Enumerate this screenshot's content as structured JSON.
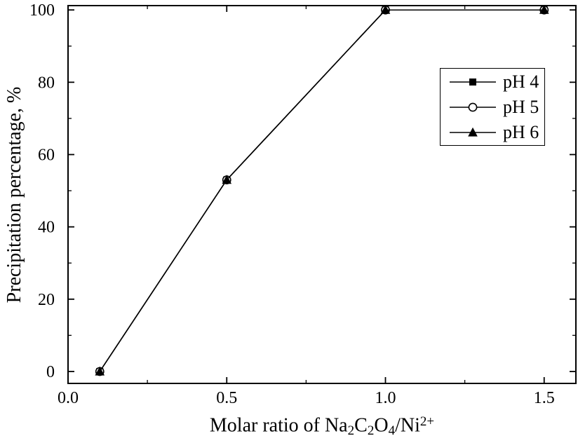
{
  "colors": {
    "foreground": "#000000",
    "background": "#ffffff"
  },
  "labels": {
    "ylabel": "Precipitation percentage, %",
    "xlabel": {
      "t1": "Molar ratio of Na",
      "s1": "2",
      "t2": "C",
      "s2": "2",
      "t3": "O",
      "s3": "4",
      "t4": "/Ni",
      "sup1": "2+"
    }
  },
  "chart_data": {
    "type": "line",
    "title": "",
    "xlabel": "Molar ratio of Na2C2O4/Ni2+",
    "ylabel": "Precipitation percentage, %",
    "x": [
      0.1,
      0.5,
      1.0,
      1.5
    ],
    "series": [
      {
        "name": "pH 4",
        "marker": "filled-square",
        "color": "#000000",
        "values": [
          0,
          53,
          100,
          100
        ]
      },
      {
        "name": "pH 5",
        "marker": "open-circle",
        "color": "#000000",
        "values": [
          0,
          53,
          100,
          100
        ]
      },
      {
        "name": "pH 6",
        "marker": "filled-triangle",
        "color": "#000000",
        "values": [
          0,
          53,
          100,
          100
        ]
      }
    ],
    "xlim": [
      0,
      1.6
    ],
    "ylim": [
      -3.3,
      101.2
    ],
    "x_major_ticks": [
      0,
      0.5,
      1.0,
      1.5
    ],
    "x_tick_labels": [
      "0.0",
      "0.5",
      "1.0",
      "1.5"
    ],
    "x_minor_step": 0.25,
    "y_major_ticks": [
      0,
      20,
      40,
      60,
      80,
      100
    ],
    "y_tick_labels": [
      "0",
      "20",
      "40",
      "60",
      "80",
      "100"
    ],
    "y_minor_step": 10,
    "grid": false,
    "legend_position": "upper-right"
  }
}
